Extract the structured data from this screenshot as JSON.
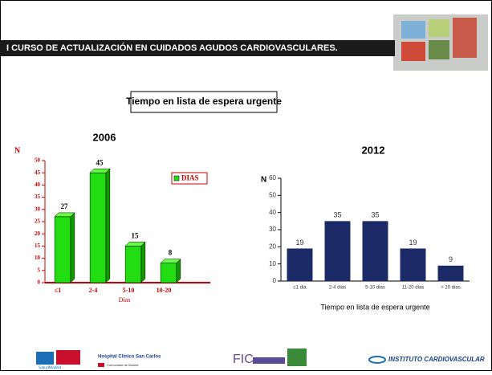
{
  "header": {
    "title": "I CURSO DE ACTUALIZACIÓN EN CUIDADOS AGUDOS CARDIOVASCULARES."
  },
  "subtitle": "Tiempo en lista de espera urgente",
  "chart_data": [
    {
      "type": "bar",
      "title": "2006",
      "three_d": true,
      "color": "#22dd11",
      "label_color": "#cc0000",
      "categories": [
        "≤1",
        "2-4",
        "5-10",
        "10-20"
      ],
      "values": [
        27,
        45,
        15,
        8
      ],
      "ylim": [
        0,
        50
      ],
      "yticks": [
        0,
        5,
        10,
        15,
        20,
        25,
        30,
        35,
        40,
        45,
        50
      ],
      "y_label": "N",
      "x_label": "Días",
      "legend": "DIAS",
      "legend_position": "upper right"
    },
    {
      "type": "bar",
      "title": "2012",
      "three_d": false,
      "color": "#1c2a68",
      "label_color": "#333333",
      "categories": [
        "≤1 dia",
        "2-4 dias",
        "5-10 dias",
        "11-20 dias",
        "> 20 dias"
      ],
      "values": [
        19,
        35,
        35,
        19,
        9
      ],
      "ylim": [
        0,
        60
      ],
      "yticks": [
        0,
        10,
        20,
        30,
        40,
        50,
        60
      ],
      "y_label": "N",
      "x_label": "Tiempo en lista de espera urgente"
    }
  ],
  "footer": {
    "logo1": "SaludMadrid",
    "logo2": "Hospital Clínico San Carlos",
    "logo3": "Comunidad de Madrid",
    "logo4": "FIC",
    "logo5": "INSTITUTO CARDIOVASCULAR"
  }
}
